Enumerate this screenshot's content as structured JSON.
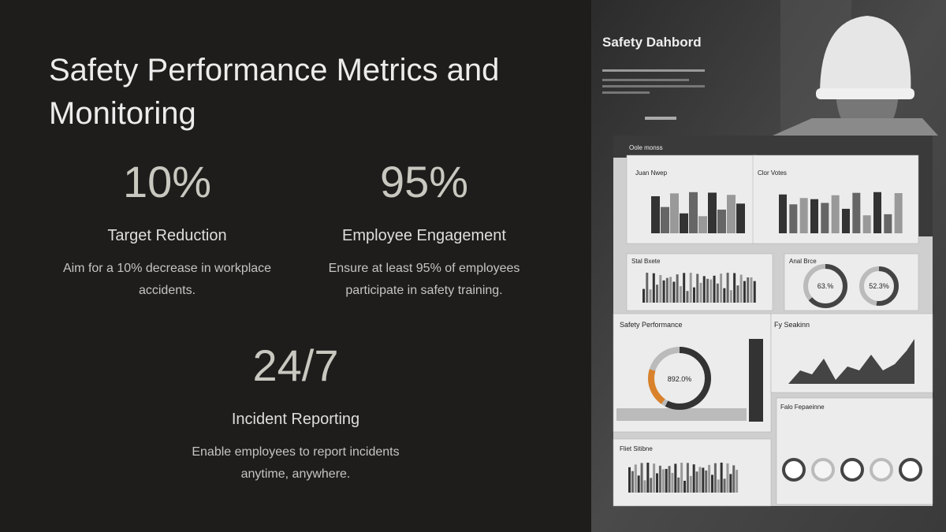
{
  "slide": {
    "title": "Safety Performance Metrics and Monitoring",
    "metrics": [
      {
        "value": "10%",
        "label": "Target Reduction",
        "description": "Aim for a 10% decrease in workplace accidents."
      },
      {
        "value": "95%",
        "label": "Employee Engagement",
        "description": "Ensure at least 95% of employees participate in safety training."
      },
      {
        "value": "24/7",
        "label": "Incident Reporting",
        "description": "Enable employees to report incidents anytime, anywhere."
      }
    ]
  },
  "image": {
    "title": "Safety Dahbord",
    "header": "Oole monss",
    "panels": [
      "Juan Nwep",
      "Clor Votes",
      "Stal Bxete",
      "Anal Brce",
      "Safety Performance",
      "Fy Seakinn",
      "Fliet Sitibne",
      "Falo Fepaeinne"
    ],
    "gauges": [
      "63.%",
      "52.3%",
      "892.0%"
    ]
  }
}
